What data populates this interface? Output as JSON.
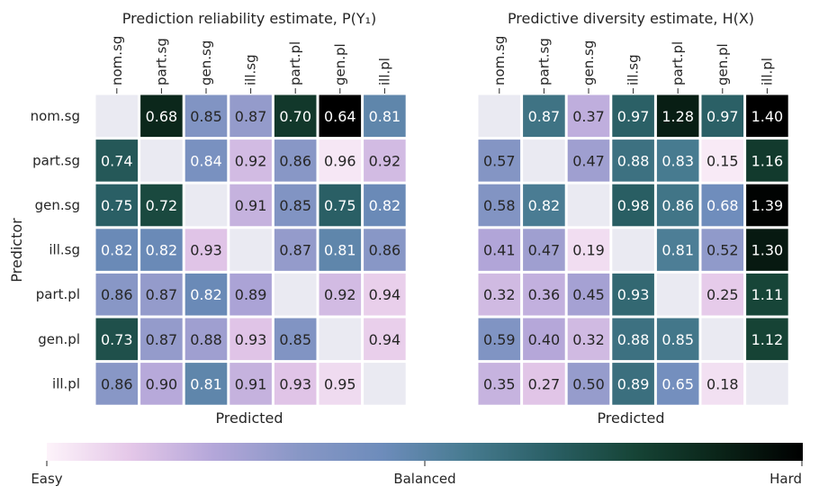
{
  "chart_data": [
    {
      "type": "heatmap",
      "title": "Prediction reliability estimate, P(Y₁)",
      "xlabel": "Predicted",
      "ylabel": "Predictor",
      "x_categories": [
        "nom.sg",
        "part.sg",
        "gen.sg",
        "ill.sg",
        "part.pl",
        "gen.pl",
        "ill.pl"
      ],
      "y_categories": [
        "nom.sg",
        "part.sg",
        "gen.sg",
        "ill.sg",
        "part.pl",
        "gen.pl",
        "ill.pl"
      ],
      "values": [
        [
          null,
          0.68,
          0.85,
          0.87,
          0.7,
          0.64,
          0.81
        ],
        [
          0.74,
          null,
          0.84,
          0.92,
          0.86,
          0.96,
          0.92
        ],
        [
          0.75,
          0.72,
          null,
          0.91,
          0.85,
          0.75,
          0.82
        ],
        [
          0.82,
          0.82,
          0.93,
          null,
          0.87,
          0.81,
          0.86
        ],
        [
          0.86,
          0.87,
          0.82,
          0.89,
          null,
          0.92,
          0.94
        ],
        [
          0.73,
          0.87,
          0.88,
          0.93,
          0.85,
          null,
          0.94
        ],
        [
          0.86,
          0.9,
          0.81,
          0.91,
          0.93,
          0.95,
          null
        ]
      ],
      "color_scale": "reversed (low value = hard/dark, high value = easy/light)",
      "color_range": [
        0.64,
        0.97
      ]
    },
    {
      "type": "heatmap",
      "title": "Predictive diversity estimate, H(X)",
      "xlabel": "Predicted",
      "ylabel": "",
      "x_categories": [
        "nom.sg",
        "part.sg",
        "gen.sg",
        "ill.sg",
        "part.pl",
        "gen.pl",
        "ill.pl"
      ],
      "y_categories": [
        "nom.sg",
        "part.sg",
        "gen.sg",
        "ill.sg",
        "part.pl",
        "gen.pl",
        "ill.pl"
      ],
      "values": [
        [
          null,
          0.87,
          0.37,
          0.97,
          1.28,
          0.97,
          1.4
        ],
        [
          0.57,
          null,
          0.47,
          0.88,
          0.83,
          0.15,
          1.16
        ],
        [
          0.58,
          0.82,
          null,
          0.98,
          0.86,
          0.68,
          1.39
        ],
        [
          0.41,
          0.47,
          0.19,
          null,
          0.81,
          0.52,
          1.3
        ],
        [
          0.32,
          0.36,
          0.45,
          0.93,
          null,
          0.25,
          1.11
        ],
        [
          0.59,
          0.4,
          0.32,
          0.88,
          0.85,
          null,
          1.12
        ],
        [
          0.35,
          0.27,
          0.5,
          0.89,
          0.65,
          0.18,
          null
        ]
      ],
      "color_scale": "normal (low value = easy/light, high value = hard/dark)",
      "color_range": [
        0.12,
        1.4
      ]
    }
  ],
  "colorbar": {
    "colormap": "cubehelix-like white→lavender→slate blue→teal→black",
    "labels": [
      "Easy",
      "Balanced",
      "Hard"
    ],
    "stops": [
      "#fdf3fa",
      "#e4c7e8",
      "#b3a6d9",
      "#8897c6",
      "#6d8cbb",
      "#477b90",
      "#2a5f65",
      "#164436",
      "#0a2418",
      "#000000"
    ]
  },
  "colors": {
    "cell_gap": "#ffffff",
    "diagonal": "#eaeaf2",
    "text_light": "#ffffff",
    "text_dark": "#262626"
  }
}
